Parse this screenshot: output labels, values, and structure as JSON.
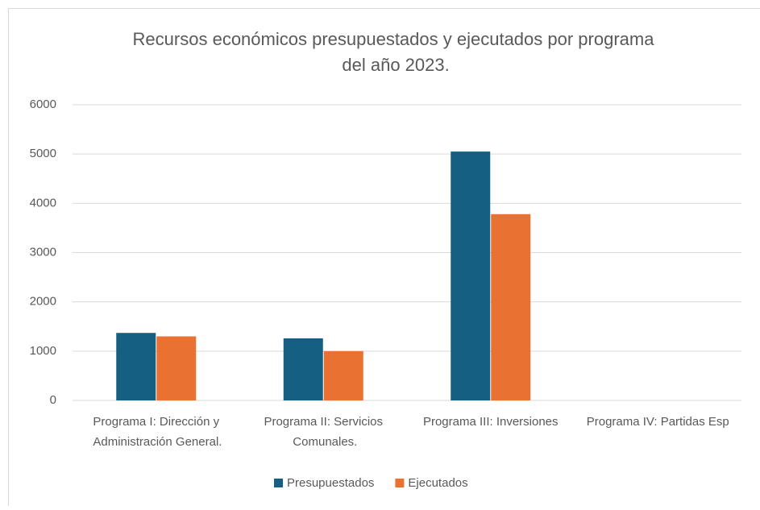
{
  "chart_data": {
    "type": "bar",
    "title": "Recursos económicos presupuestados y ejecutados por programa del año 2023.",
    "categories": [
      "Programa I: Dirección y Administración General.",
      "Programa II: Servicios Comunales.",
      "Programa III: Inversiones",
      "Programa IV: Partidas Esp"
    ],
    "series": [
      {
        "name": "Presupuestados",
        "color": "#156082",
        "values": [
          1370,
          1260,
          5050,
          0
        ]
      },
      {
        "name": "Ejecutados",
        "color": "#e97132",
        "values": [
          1300,
          1000,
          3780,
          0
        ]
      }
    ],
    "ylim": [
      0,
      6000
    ],
    "yticks": [
      0,
      1000,
      2000,
      3000,
      4000,
      5000,
      6000
    ],
    "grid": true,
    "legend": "bottom"
  }
}
